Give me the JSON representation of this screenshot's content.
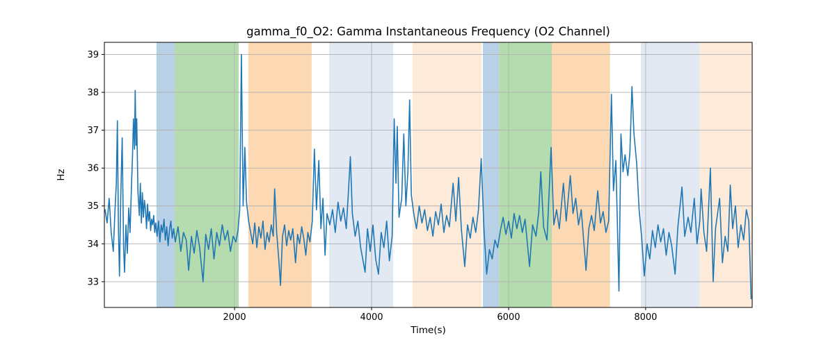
{
  "figure": {
    "title": "gamma_f0_O2: Gamma Instantaneous Frequency (O2 Channel)",
    "xlabel": "Time(s)",
    "ylabel": "Hz"
  },
  "chart_data": {
    "type": "line",
    "title": "gamma_f0_O2: Gamma Instantaneous Frequency (O2 Channel)",
    "xlabel": "Time(s)",
    "ylabel": "Hz",
    "xlim": [
      100,
      9555
    ],
    "ylim": [
      32.32,
      39.32
    ],
    "x_ticks": [
      2000,
      4000,
      6000,
      8000
    ],
    "y_ticks": [
      33,
      34,
      35,
      36,
      37,
      38,
      39
    ],
    "grid": true,
    "legend": false,
    "colors": {
      "line": "#1f77b4",
      "grid": "#b0b0b0",
      "spine": "#000000",
      "band_blue": "#b8d1e7",
      "band_green": "#b5dcae",
      "band_orange": "#fcd8b3",
      "band_periwinkle": "#e2e9f3",
      "band_cream": "#fdead9"
    },
    "bands": [
      {
        "name": "band_blue",
        "t0": 860,
        "t1": 1125
      },
      {
        "name": "band_green",
        "t0": 1125,
        "t1": 2060
      },
      {
        "name": "band_orange",
        "t0": 2200,
        "t1": 3125
      },
      {
        "name": "band_periwinkle",
        "t0": 3380,
        "t1": 4315
      },
      {
        "name": "band_cream",
        "t0": 4600,
        "t1": 5605
      },
      {
        "name": "band_blue",
        "t0": 5625,
        "t1": 5860
      },
      {
        "name": "band_green",
        "t0": 5860,
        "t1": 6630
      },
      {
        "name": "band_orange",
        "t0": 6630,
        "t1": 7480
      },
      {
        "name": "band_periwinkle",
        "t0": 7930,
        "t1": 8790
      },
      {
        "name": "band_cream",
        "t0": 8790,
        "t1": 9555
      }
    ],
    "series": [
      {
        "name": "gamma_f0_O2",
        "color": "#1f77b4",
        "points": [
          [
            110,
            34.9
          ],
          [
            140,
            34.55
          ],
          [
            170,
            35.2
          ],
          [
            200,
            34.3
          ],
          [
            230,
            33.8
          ],
          [
            255,
            34.9
          ],
          [
            275,
            35.6
          ],
          [
            290,
            37.25
          ],
          [
            305,
            34.4
          ],
          [
            320,
            33.15
          ],
          [
            340,
            35.3
          ],
          [
            360,
            36.8
          ],
          [
            380,
            33.9
          ],
          [
            395,
            33.25
          ],
          [
            415,
            34.5
          ],
          [
            435,
            33.75
          ],
          [
            455,
            34.95
          ],
          [
            475,
            34.3
          ],
          [
            495,
            35.5
          ],
          [
            510,
            36.3
          ],
          [
            525,
            37.3
          ],
          [
            540,
            36.5
          ],
          [
            550,
            38.05
          ],
          [
            562,
            36.6
          ],
          [
            572,
            37.3
          ],
          [
            590,
            35.4
          ],
          [
            610,
            34.75
          ],
          [
            625,
            35.6
          ],
          [
            640,
            34.55
          ],
          [
            655,
            35.35
          ],
          [
            670,
            34.7
          ],
          [
            685,
            35.15
          ],
          [
            700,
            34.9
          ],
          [
            715,
            34.4
          ],
          [
            730,
            35.05
          ],
          [
            745,
            34.6
          ],
          [
            760,
            34.85
          ],
          [
            775,
            34.35
          ],
          [
            790,
            34.65
          ],
          [
            805,
            34.5
          ],
          [
            820,
            34.75
          ],
          [
            835,
            34.3
          ],
          [
            850,
            34.55
          ],
          [
            870,
            34.2
          ],
          [
            890,
            34.6
          ],
          [
            910,
            34.05
          ],
          [
            930,
            34.5
          ],
          [
            950,
            34.3
          ],
          [
            970,
            34.65
          ],
          [
            990,
            34.1
          ],
          [
            1010,
            34.45
          ],
          [
            1030,
            33.95
          ],
          [
            1050,
            34.35
          ],
          [
            1070,
            34.6
          ],
          [
            1090,
            34.15
          ],
          [
            1110,
            34.4
          ],
          [
            1135,
            34.05
          ],
          [
            1175,
            34.45
          ],
          [
            1215,
            33.8
          ],
          [
            1255,
            34.3
          ],
          [
            1295,
            34.1
          ],
          [
            1330,
            33.3
          ],
          [
            1370,
            34.2
          ],
          [
            1410,
            33.75
          ],
          [
            1450,
            34.35
          ],
          [
            1490,
            33.9
          ],
          [
            1540,
            33.0
          ],
          [
            1580,
            34.25
          ],
          [
            1620,
            33.85
          ],
          [
            1660,
            34.4
          ],
          [
            1700,
            33.6
          ],
          [
            1740,
            34.3
          ],
          [
            1780,
            33.95
          ],
          [
            1820,
            34.5
          ],
          [
            1860,
            34.1
          ],
          [
            1900,
            34.35
          ],
          [
            1940,
            33.8
          ],
          [
            1980,
            34.2
          ],
          [
            2020,
            34.05
          ],
          [
            2050,
            34.35
          ],
          [
            2075,
            34.9
          ],
          [
            2100,
            39.0
          ],
          [
            2125,
            35.0
          ],
          [
            2150,
            36.55
          ],
          [
            2175,
            35.1
          ],
          [
            2205,
            34.6
          ],
          [
            2235,
            34.3
          ],
          [
            2265,
            34.0
          ],
          [
            2295,
            34.55
          ],
          [
            2325,
            33.9
          ],
          [
            2355,
            34.45
          ],
          [
            2385,
            34.15
          ],
          [
            2415,
            34.6
          ],
          [
            2445,
            33.85
          ],
          [
            2475,
            34.3
          ],
          [
            2505,
            34.05
          ],
          [
            2535,
            34.5
          ],
          [
            2565,
            34.2
          ],
          [
            2585,
            35.45
          ],
          [
            2615,
            34.3
          ],
          [
            2645,
            33.6
          ],
          [
            2670,
            32.9
          ],
          [
            2700,
            34.2
          ],
          [
            2730,
            34.5
          ],
          [
            2760,
            33.95
          ],
          [
            2790,
            34.35
          ],
          [
            2820,
            34.1
          ],
          [
            2850,
            34.4
          ],
          [
            2890,
            33.5
          ],
          [
            2920,
            34.25
          ],
          [
            2950,
            34.0
          ],
          [
            2980,
            34.45
          ],
          [
            3010,
            34.15
          ],
          [
            3040,
            33.7
          ],
          [
            3070,
            34.3
          ],
          [
            3100,
            34.05
          ],
          [
            3135,
            34.6
          ],
          [
            3165,
            36.5
          ],
          [
            3195,
            34.9
          ],
          [
            3230,
            36.2
          ],
          [
            3260,
            34.4
          ],
          [
            3290,
            35.2
          ],
          [
            3320,
            33.7
          ],
          [
            3350,
            34.8
          ],
          [
            3390,
            34.5
          ],
          [
            3430,
            34.9
          ],
          [
            3470,
            34.3
          ],
          [
            3510,
            35.1
          ],
          [
            3550,
            34.6
          ],
          [
            3590,
            34.95
          ],
          [
            3630,
            34.4
          ],
          [
            3660,
            35.3
          ],
          [
            3690,
            36.3
          ],
          [
            3720,
            34.8
          ],
          [
            3760,
            34.2
          ],
          [
            3800,
            34.6
          ],
          [
            3840,
            33.9
          ],
          [
            3905,
            33.25
          ],
          [
            3940,
            34.4
          ],
          [
            3980,
            33.8
          ],
          [
            4020,
            34.5
          ],
          [
            4060,
            33.6
          ],
          [
            4100,
            33.2
          ],
          [
            4140,
            34.3
          ],
          [
            4180,
            33.9
          ],
          [
            4220,
            34.6
          ],
          [
            4260,
            33.55
          ],
          [
            4300,
            34.2
          ],
          [
            4330,
            37.3
          ],
          [
            4355,
            35.6
          ],
          [
            4375,
            37.1
          ],
          [
            4400,
            34.7
          ],
          [
            4440,
            35.2
          ],
          [
            4470,
            36.9
          ],
          [
            4500,
            35.0
          ],
          [
            4530,
            35.9
          ],
          [
            4555,
            37.8
          ],
          [
            4580,
            35.3
          ],
          [
            4615,
            34.8
          ],
          [
            4655,
            34.4
          ],
          [
            4695,
            35.0
          ],
          [
            4735,
            34.55
          ],
          [
            4775,
            34.9
          ],
          [
            4815,
            34.35
          ],
          [
            4855,
            34.7
          ],
          [
            4895,
            34.2
          ],
          [
            4935,
            34.85
          ],
          [
            4975,
            34.5
          ],
          [
            5015,
            35.05
          ],
          [
            5055,
            34.3
          ],
          [
            5095,
            34.75
          ],
          [
            5135,
            34.45
          ],
          [
            5190,
            35.6
          ],
          [
            5230,
            34.6
          ],
          [
            5270,
            35.75
          ],
          [
            5310,
            34.4
          ],
          [
            5360,
            33.4
          ],
          [
            5400,
            34.5
          ],
          [
            5440,
            34.15
          ],
          [
            5480,
            34.7
          ],
          [
            5520,
            34.3
          ],
          [
            5560,
            34.9
          ],
          [
            5600,
            36.25
          ],
          [
            5640,
            34.4
          ],
          [
            5680,
            33.2
          ],
          [
            5720,
            33.85
          ],
          [
            5760,
            33.6
          ],
          [
            5800,
            34.1
          ],
          [
            5840,
            33.9
          ],
          [
            5880,
            34.35
          ],
          [
            5920,
            34.7
          ],
          [
            5960,
            34.25
          ],
          [
            6000,
            34.6
          ],
          [
            6040,
            34.15
          ],
          [
            6080,
            34.8
          ],
          [
            6120,
            34.4
          ],
          [
            6160,
            34.75
          ],
          [
            6200,
            34.3
          ],
          [
            6240,
            34.65
          ],
          [
            6305,
            33.4
          ],
          [
            6350,
            34.5
          ],
          [
            6400,
            34.2
          ],
          [
            6440,
            34.85
          ],
          [
            6470,
            35.9
          ],
          [
            6510,
            34.45
          ],
          [
            6560,
            34.1
          ],
          [
            6620,
            36.55
          ],
          [
            6660,
            34.5
          ],
          [
            6700,
            34.9
          ],
          [
            6740,
            34.4
          ],
          [
            6800,
            35.6
          ],
          [
            6840,
            34.6
          ],
          [
            6900,
            35.8
          ],
          [
            6940,
            34.8
          ],
          [
            6980,
            35.2
          ],
          [
            7020,
            34.5
          ],
          [
            7060,
            34.9
          ],
          [
            7130,
            33.3
          ],
          [
            7170,
            34.4
          ],
          [
            7210,
            34.75
          ],
          [
            7250,
            34.35
          ],
          [
            7300,
            35.4
          ],
          [
            7340,
            34.55
          ],
          [
            7380,
            34.85
          ],
          [
            7420,
            34.3
          ],
          [
            7460,
            34.6
          ],
          [
            7500,
            37.95
          ],
          [
            7530,
            35.4
          ],
          [
            7565,
            36.2
          ],
          [
            7610,
            32.75
          ],
          [
            7640,
            36.9
          ],
          [
            7670,
            35.9
          ],
          [
            7700,
            36.35
          ],
          [
            7740,
            35.8
          ],
          [
            7770,
            36.4
          ],
          [
            7800,
            38.15
          ],
          [
            7830,
            36.9
          ],
          [
            7870,
            36.1
          ],
          [
            7905,
            34.9
          ],
          [
            7940,
            34.2
          ],
          [
            7980,
            33.15
          ],
          [
            8020,
            34.0
          ],
          [
            8060,
            33.6
          ],
          [
            8100,
            34.35
          ],
          [
            8140,
            33.9
          ],
          [
            8180,
            34.5
          ],
          [
            8220,
            34.05
          ],
          [
            8260,
            34.4
          ],
          [
            8300,
            33.7
          ],
          [
            8340,
            34.3
          ],
          [
            8380,
            33.95
          ],
          [
            8430,
            33.2
          ],
          [
            8470,
            34.45
          ],
          [
            8530,
            35.5
          ],
          [
            8570,
            34.2
          ],
          [
            8620,
            34.7
          ],
          [
            8660,
            34.3
          ],
          [
            8710,
            35.2
          ],
          [
            8750,
            34.0
          ],
          [
            8790,
            34.6
          ],
          [
            8810,
            35.45
          ],
          [
            8850,
            34.3
          ],
          [
            8890,
            33.8
          ],
          [
            8945,
            36.0
          ],
          [
            8985,
            33.0
          ],
          [
            9020,
            34.4
          ],
          [
            9080,
            35.2
          ],
          [
            9120,
            33.5
          ],
          [
            9160,
            34.2
          ],
          [
            9200,
            33.8
          ],
          [
            9235,
            35.55
          ],
          [
            9270,
            34.4
          ],
          [
            9310,
            35.0
          ],
          [
            9350,
            33.9
          ],
          [
            9390,
            34.5
          ],
          [
            9430,
            34.1
          ],
          [
            9470,
            34.9
          ],
          [
            9505,
            34.6
          ],
          [
            9540,
            32.55
          ]
        ]
      }
    ]
  }
}
